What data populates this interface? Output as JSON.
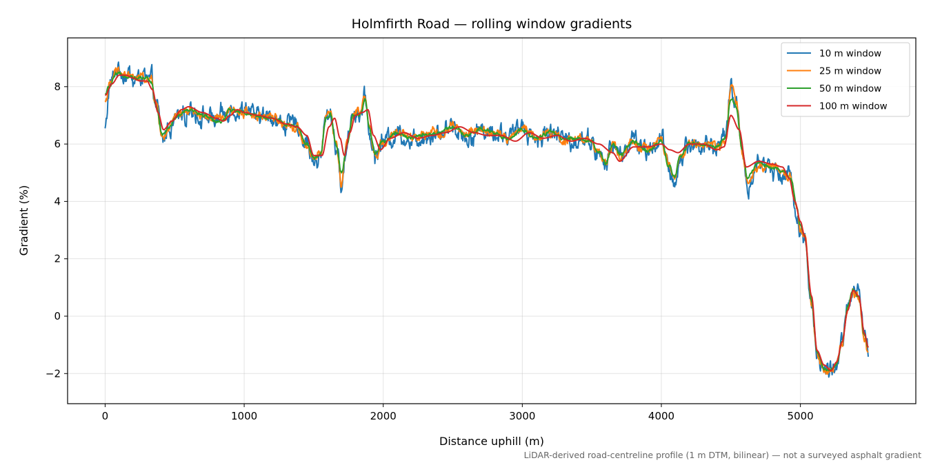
{
  "chart_data": {
    "type": "line",
    "title": "Holmfirth Road — rolling window gradients",
    "xlabel": "Distance uphill (m)",
    "ylabel": "Gradient (%)",
    "footnote": "LiDAR-derived road-centreline profile (1 m DTM, bilinear) — not a surveyed asphalt gradient",
    "xlim": [
      -270,
      5830
    ],
    "ylim": [
      -3.05,
      9.7
    ],
    "xticks": [
      0,
      1000,
      2000,
      3000,
      4000,
      5000
    ],
    "xtick_labels": [
      "0",
      "1000",
      "2000",
      "3000",
      "4000",
      "5000"
    ],
    "yticks": [
      -2,
      0,
      2,
      4,
      6,
      8
    ],
    "ytick_labels": [
      "−2",
      "0",
      "2",
      "4",
      "6",
      "8"
    ],
    "grid": true,
    "legend_position": "top-right",
    "series": [
      {
        "name": "10 m window",
        "color": "#1f77b4",
        "width": 2.0,
        "noise": 0.4,
        "x": [
          0,
          30,
          80,
          150,
          220,
          290,
          330,
          370,
          410,
          460,
          520,
          600,
          700,
          800,
          850,
          900,
          1000,
          1100,
          1200,
          1300,
          1380,
          1450,
          1500,
          1550,
          1590,
          1620,
          1660,
          1700,
          1740,
          1780,
          1830,
          1870,
          1900,
          1940,
          2000,
          2100,
          2200,
          2300,
          2400,
          2500,
          2600,
          2700,
          2800,
          2900,
          3000,
          3100,
          3200,
          3300,
          3400,
          3500,
          3550,
          3600,
          3650,
          3700,
          3800,
          3900,
          4000,
          4050,
          4100,
          4130,
          4200,
          4300,
          4400,
          4460,
          4500,
          4540,
          4580,
          4620,
          4700,
          4800,
          4880,
          4930,
          4970,
          5000,
          5030,
          5080,
          5120,
          5170,
          5220,
          5260,
          5300,
          5340,
          5380,
          5420,
          5460,
          5490
        ],
        "y": [
          6.5,
          8.0,
          8.6,
          8.4,
          8.3,
          8.3,
          8.2,
          7.3,
          6.1,
          6.6,
          7.0,
          7.2,
          7.0,
          6.8,
          6.9,
          7.2,
          7.1,
          7.0,
          6.9,
          6.7,
          6.6,
          6.0,
          5.4,
          5.6,
          7.0,
          7.1,
          6.0,
          4.5,
          6.0,
          7.1,
          7.1,
          7.7,
          6.5,
          5.6,
          6.1,
          6.4,
          6.2,
          6.3,
          6.4,
          6.6,
          6.3,
          6.5,
          6.4,
          6.2,
          6.6,
          6.2,
          6.4,
          6.2,
          6.2,
          6.1,
          5.6,
          5.2,
          6.0,
          5.6,
          6.1,
          5.8,
          6.2,
          5.2,
          4.7,
          5.5,
          6.0,
          6.0,
          5.9,
          6.2,
          8.0,
          7.4,
          5.8,
          4.6,
          5.3,
          5.2,
          5.0,
          4.8,
          3.8,
          3.0,
          2.8,
          0.5,
          -1.3,
          -1.9,
          -1.9,
          -1.7,
          -0.9,
          0.3,
          0.9,
          0.7,
          -0.7,
          -1.2
        ]
      },
      {
        "name": "25 m window",
        "color": "#ff7f0e",
        "width": 2.0,
        "noise": 0.2,
        "x": [
          0,
          30,
          80,
          150,
          220,
          290,
          330,
          370,
          410,
          460,
          520,
          600,
          700,
          800,
          850,
          900,
          1000,
          1100,
          1200,
          1300,
          1380,
          1450,
          1500,
          1550,
          1590,
          1620,
          1660,
          1700,
          1740,
          1780,
          1830,
          1870,
          1900,
          1940,
          2000,
          2100,
          2200,
          2300,
          2400,
          2500,
          2600,
          2700,
          2800,
          2900,
          3000,
          3100,
          3200,
          3300,
          3400,
          3500,
          3550,
          3600,
          3650,
          3700,
          3800,
          3900,
          4000,
          4050,
          4100,
          4130,
          4200,
          4300,
          4400,
          4460,
          4500,
          4540,
          4580,
          4620,
          4700,
          4800,
          4880,
          4930,
          4970,
          5000,
          5030,
          5080,
          5120,
          5170,
          5220,
          5260,
          5300,
          5340,
          5380,
          5420,
          5460,
          5490
        ],
        "y": [
          7.5,
          8.0,
          8.5,
          8.4,
          8.3,
          8.3,
          8.2,
          7.3,
          6.2,
          6.6,
          7.0,
          7.2,
          7.0,
          6.8,
          6.9,
          7.2,
          7.1,
          7.0,
          6.9,
          6.7,
          6.6,
          6.0,
          5.5,
          5.6,
          7.0,
          7.1,
          6.0,
          4.7,
          6.0,
          7.1,
          7.1,
          7.6,
          6.5,
          5.6,
          6.1,
          6.4,
          6.2,
          6.3,
          6.4,
          6.6,
          6.3,
          6.5,
          6.4,
          6.2,
          6.6,
          6.2,
          6.4,
          6.2,
          6.2,
          6.1,
          5.6,
          5.3,
          6.0,
          5.6,
          6.1,
          5.8,
          6.2,
          5.2,
          4.8,
          5.5,
          6.0,
          6.0,
          5.9,
          6.2,
          7.9,
          7.4,
          5.8,
          4.7,
          5.3,
          5.2,
          5.0,
          4.8,
          3.9,
          3.1,
          2.8,
          0.5,
          -1.3,
          -1.9,
          -1.9,
          -1.7,
          -0.9,
          0.3,
          0.9,
          0.7,
          -0.7,
          -1.2
        ]
      },
      {
        "name": "50 m window",
        "color": "#2ca02c",
        "width": 2.0,
        "noise": 0.08,
        "x": [
          0,
          30,
          80,
          150,
          220,
          290,
          330,
          370,
          410,
          460,
          520,
          600,
          700,
          800,
          850,
          900,
          1000,
          1100,
          1200,
          1300,
          1380,
          1450,
          1500,
          1550,
          1590,
          1620,
          1660,
          1700,
          1740,
          1780,
          1830,
          1870,
          1900,
          1940,
          2000,
          2100,
          2200,
          2300,
          2400,
          2500,
          2600,
          2700,
          2800,
          2900,
          3000,
          3100,
          3200,
          3300,
          3400,
          3500,
          3550,
          3600,
          3650,
          3700,
          3800,
          3900,
          4000,
          4050,
          4100,
          4130,
          4200,
          4300,
          4400,
          4460,
          4500,
          4540,
          4580,
          4620,
          4700,
          4800,
          4880,
          4930,
          4970,
          5000,
          5030,
          5080,
          5120,
          5170,
          5220,
          5260,
          5300,
          5340,
          5380,
          5420,
          5460,
          5490
        ],
        "y": [
          7.7,
          8.0,
          8.4,
          8.4,
          8.3,
          8.3,
          8.2,
          7.3,
          6.3,
          6.6,
          7.0,
          7.2,
          7.0,
          6.8,
          6.8,
          7.2,
          7.1,
          7.0,
          6.9,
          6.7,
          6.6,
          6.0,
          5.5,
          5.6,
          6.9,
          7.0,
          6.0,
          5.0,
          6.0,
          7.0,
          7.0,
          7.5,
          6.5,
          5.7,
          6.1,
          6.4,
          6.2,
          6.3,
          6.4,
          6.6,
          6.3,
          6.5,
          6.4,
          6.2,
          6.5,
          6.2,
          6.4,
          6.2,
          6.2,
          6.1,
          5.7,
          5.3,
          6.0,
          5.6,
          6.1,
          5.8,
          6.1,
          5.3,
          4.9,
          5.5,
          6.0,
          6.0,
          5.9,
          6.2,
          7.6,
          7.3,
          5.8,
          4.8,
          5.3,
          5.2,
          5.0,
          4.8,
          3.9,
          3.2,
          2.8,
          0.5,
          -1.3,
          -1.8,
          -1.9,
          -1.7,
          -0.9,
          0.3,
          0.9,
          0.7,
          -0.7,
          -1.1
        ]
      },
      {
        "name": "100 m window",
        "color": "#d62728",
        "width": 2.0,
        "noise": 0.0,
        "x": [
          0,
          50,
          100,
          150,
          200,
          250,
          300,
          340,
          380,
          420,
          480,
          550,
          600,
          700,
          800,
          850,
          900,
          950,
          1000,
          1100,
          1200,
          1300,
          1380,
          1450,
          1500,
          1560,
          1610,
          1650,
          1690,
          1720,
          1760,
          1800,
          1850,
          1890,
          1930,
          1980,
          2050,
          2150,
          2250,
          2350,
          2450,
          2550,
          2650,
          2750,
          2850,
          2950,
          3050,
          3150,
          3250,
          3350,
          3450,
          3550,
          3650,
          3700,
          3800,
          3900,
          4000,
          4060,
          4120,
          4200,
          4300,
          4400,
          4450,
          4500,
          4560,
          4610,
          4700,
          4800,
          4870,
          4920,
          4960,
          5000,
          5030,
          5080,
          5120,
          5170,
          5220,
          5260,
          5300,
          5340,
          5380,
          5420,
          5460,
          5490
        ],
        "y": [
          7.7,
          8.1,
          8.4,
          8.4,
          8.3,
          8.2,
          8.2,
          7.9,
          7.1,
          6.5,
          6.8,
          7.2,
          7.3,
          7.1,
          6.9,
          6.8,
          7.0,
          7.2,
          7.1,
          7.0,
          6.9,
          6.7,
          6.6,
          6.3,
          5.6,
          5.6,
          6.6,
          6.9,
          6.2,
          5.6,
          6.4,
          7.0,
          7.1,
          7.2,
          6.3,
          5.8,
          6.2,
          6.4,
          6.2,
          6.3,
          6.4,
          6.6,
          6.4,
          6.3,
          6.3,
          6.1,
          6.4,
          6.2,
          6.3,
          6.1,
          6.2,
          6.0,
          5.7,
          5.4,
          5.9,
          5.9,
          6.0,
          5.8,
          5.7,
          6.0,
          6.0,
          5.8,
          5.9,
          7.0,
          6.5,
          5.2,
          5.4,
          5.3,
          5.2,
          4.8,
          4.0,
          3.3,
          2.8,
          0.7,
          -1.2,
          -1.7,
          -1.9,
          -1.6,
          -0.9,
          0.2,
          0.9,
          0.7,
          -0.6,
          -1.1
        ]
      }
    ]
  }
}
